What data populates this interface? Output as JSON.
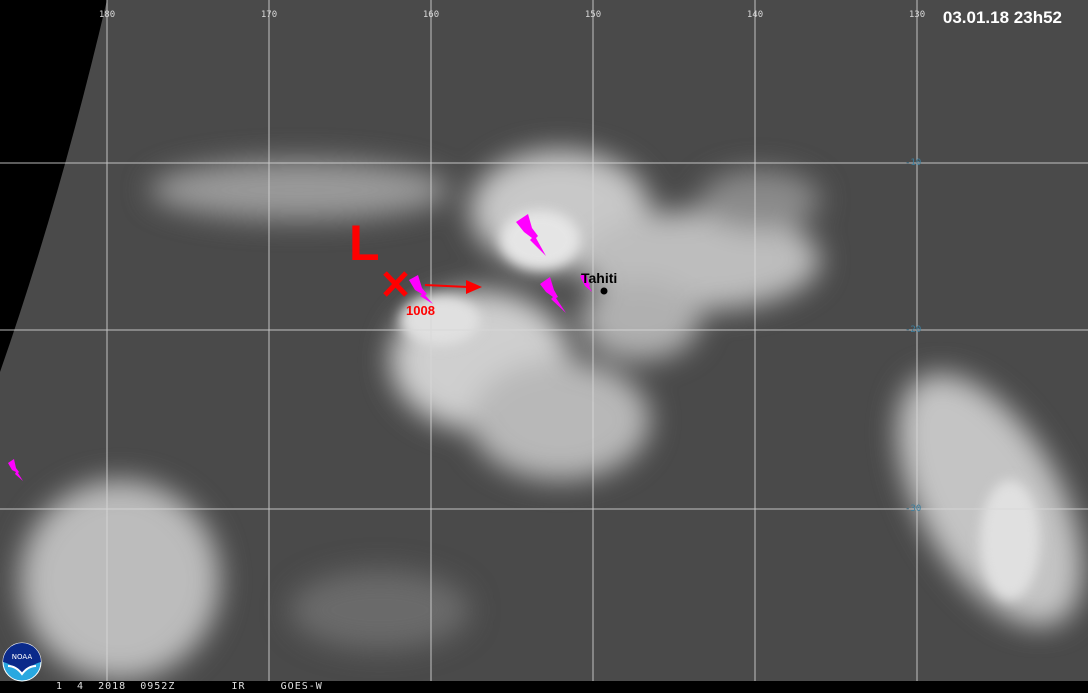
{
  "timestamp": "03.01.18 23h52",
  "longitude_labels": [
    "180",
    "170",
    "160",
    "150",
    "140",
    "130"
  ],
  "latitude_labels": [
    "-10",
    "-20",
    "-30"
  ],
  "annotations": {
    "low_label": "L",
    "low_center_marker": "x-mark-icon",
    "pressure": "1008",
    "movement": "arrow-right-icon",
    "place": "Tahiti",
    "lightning": "lightning-bolt-icon"
  },
  "footer_text": "1  4  2018  0952Z        IR     GOES-W",
  "logo": "NOAA",
  "colors": {
    "annotation": "#ff0000",
    "lightning": "#ff00ff",
    "space": "#000000"
  }
}
